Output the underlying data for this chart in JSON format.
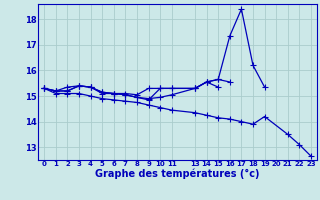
{
  "xlabel": "Graphe des températures (°c)",
  "bg_color": "#cce8e8",
  "grid_color": "#aacccc",
  "line_color": "#0000bb",
  "spine_color": "#0000bb",
  "ylim": [
    12.5,
    18.6
  ],
  "xlim": [
    -0.5,
    23.5
  ],
  "yticks": [
    13,
    14,
    15,
    16,
    17,
    18
  ],
  "xtick_positions": [
    0,
    1,
    2,
    3,
    4,
    5,
    6,
    7,
    8,
    9,
    10,
    11,
    13,
    14,
    15,
    16,
    17,
    18,
    19,
    20,
    21,
    22,
    23
  ],
  "xtick_labels": [
    "0",
    "1",
    "2",
    "3",
    "4",
    "5",
    "6",
    "7",
    "8",
    "9",
    "10",
    "11",
    "13",
    "14",
    "15",
    "16",
    "17",
    "18",
    "19",
    "20",
    "21",
    "22",
    "23"
  ],
  "series": [
    {
      "x": [
        0,
        1,
        2,
        3,
        4,
        5,
        6,
        7,
        8,
        9,
        10,
        11,
        13,
        14,
        15,
        16,
        17,
        18,
        19
      ],
      "y": [
        15.3,
        15.2,
        15.35,
        15.4,
        15.35,
        15.1,
        15.1,
        15.1,
        15.05,
        15.3,
        15.3,
        15.3,
        15.3,
        15.55,
        15.65,
        17.35,
        18.4,
        16.2,
        15.35
      ]
    },
    {
      "x": [
        0,
        1,
        2,
        3,
        4,
        5,
        6,
        7,
        8,
        9,
        10,
        11,
        13,
        14,
        15,
        16
      ],
      "y": [
        15.3,
        15.2,
        15.2,
        15.4,
        15.35,
        15.15,
        15.1,
        15.05,
        14.95,
        14.85,
        15.3,
        15.3,
        15.3,
        15.55,
        15.65,
        15.55
      ]
    },
    {
      "x": [
        0,
        1,
        2,
        3,
        4,
        5,
        6,
        7,
        8,
        9,
        10,
        11,
        13,
        14,
        15
      ],
      "y": [
        15.3,
        15.2,
        15.2,
        15.4,
        15.35,
        15.15,
        15.1,
        15.05,
        14.95,
        14.9,
        14.95,
        15.05,
        15.3,
        15.55,
        15.35
      ]
    },
    {
      "x": [
        0,
        1,
        2,
        3,
        4,
        5,
        6,
        7,
        8,
        9,
        10,
        11,
        13,
        14,
        15,
        16,
        17,
        18,
        19,
        21,
        22,
        23
      ],
      "y": [
        15.3,
        15.1,
        15.1,
        15.1,
        15.0,
        14.9,
        14.85,
        14.8,
        14.75,
        14.65,
        14.55,
        14.45,
        14.35,
        14.25,
        14.15,
        14.1,
        14.0,
        13.9,
        14.2,
        13.5,
        13.1,
        12.65
      ]
    }
  ],
  "ytick_fontsize": 6,
  "xtick_fontsize": 5,
  "xlabel_fontsize": 7,
  "linewidth": 0.9,
  "markersize": 2.0
}
